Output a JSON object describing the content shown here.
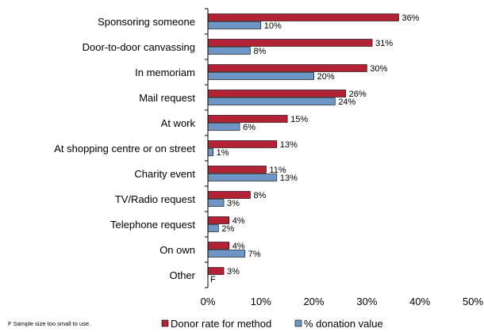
{
  "chart_data": {
    "type": "bar",
    "orientation": "horizontal",
    "categories": [
      "Sponsoring someone",
      "Door-to-door canvassing",
      "In memoriam",
      "Mail request",
      "At work",
      "At shopping centre or on street",
      "Charity event",
      "TV/Radio request",
      "Telephone request",
      "On own",
      "Other"
    ],
    "series": [
      {
        "name": "Donor rate for method",
        "color": "#b22234",
        "values": [
          36,
          31,
          30,
          26,
          15,
          13,
          11,
          8,
          4,
          4,
          3
        ],
        "labels": [
          "36%",
          "31%",
          "30%",
          "26%",
          "15%",
          "13%",
          "11%",
          "8%",
          "4%",
          "4%",
          "3%"
        ]
      },
      {
        "name": "% donation value",
        "color": "#6f97c6",
        "values": [
          10,
          8,
          20,
          24,
          6,
          1,
          13,
          3,
          2,
          7,
          null
        ],
        "labels": [
          "10%",
          "8%",
          "20%",
          "24%",
          "6%",
          "1%",
          "13%",
          "3%",
          "2%",
          "7%",
          "F"
        ]
      }
    ],
    "xlim": [
      0,
      50
    ],
    "x_ticks": [
      "0%",
      "10%",
      "20%",
      "30%",
      "40%",
      "50%"
    ],
    "grid": false,
    "legend": "bottom"
  },
  "footnote": "F Sample size too small to use."
}
